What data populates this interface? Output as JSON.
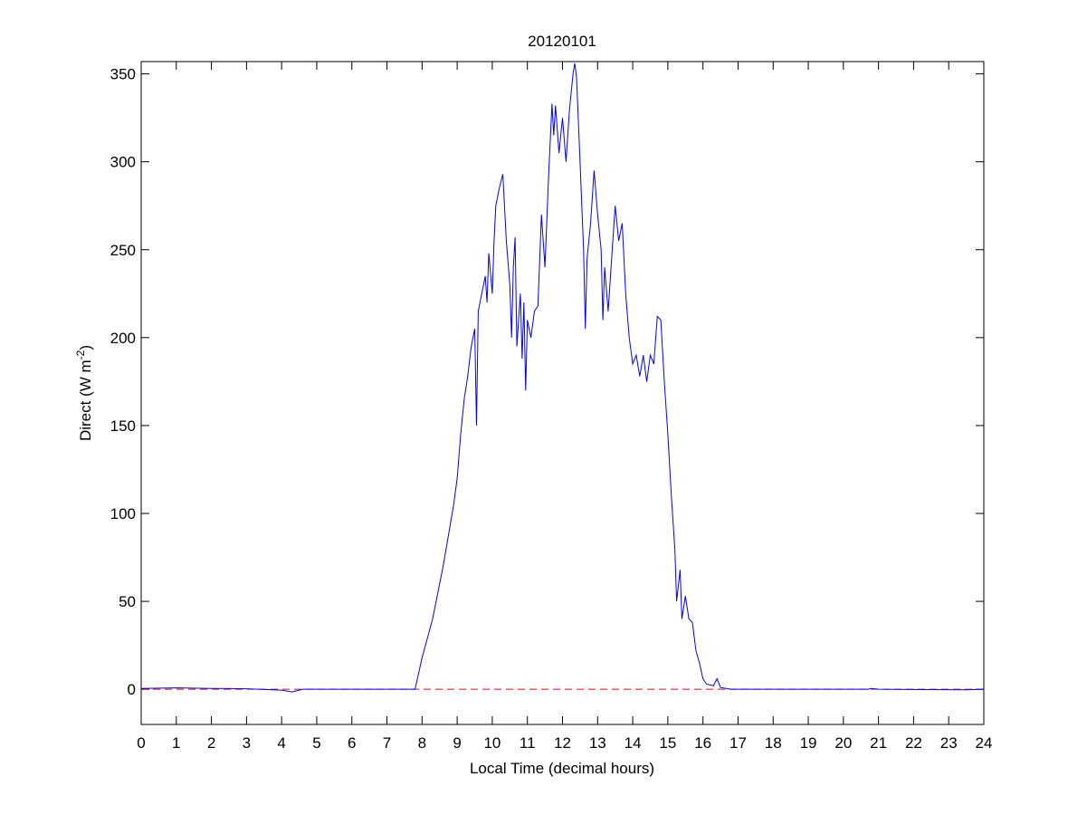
{
  "chart_data": {
    "type": "line",
    "title": "20120101",
    "xlabel": "Local Time (decimal hours)",
    "ylabel": [
      "Direct (W m",
      "-2",
      ")"
    ],
    "x": [
      0,
      1,
      2,
      3,
      4,
      4.3,
      4.6,
      7.8,
      8.0,
      8.3,
      8.6,
      8.9,
      9.0,
      9.1,
      9.2,
      9.3,
      9.4,
      9.5,
      9.55,
      9.6,
      9.7,
      9.8,
      9.85,
      9.9,
      10.0,
      10.05,
      10.1,
      10.2,
      10.3,
      10.4,
      10.5,
      10.55,
      10.6,
      10.65,
      10.7,
      10.8,
      10.85,
      10.9,
      10.95,
      11.0,
      11.1,
      11.2,
      11.3,
      11.4,
      11.5,
      11.6,
      11.7,
      11.75,
      11.8,
      11.9,
      12.0,
      12.1,
      12.2,
      12.3,
      12.35,
      12.4,
      12.5,
      12.6,
      12.65,
      12.7,
      12.8,
      12.9,
      13.0,
      13.1,
      13.15,
      13.2,
      13.3,
      13.4,
      13.5,
      13.6,
      13.7,
      13.8,
      13.9,
      14.0,
      14.1,
      14.2,
      14.3,
      14.4,
      14.5,
      14.6,
      14.7,
      14.8,
      14.9,
      15.0,
      15.1,
      15.2,
      15.25,
      15.35,
      15.4,
      15.5,
      15.6,
      15.7,
      15.8,
      15.9,
      16.0,
      16.1,
      16.3,
      16.4,
      16.5,
      16.8,
      20.7,
      20.8,
      21,
      23.5,
      24
    ],
    "series": [
      {
        "color": "#0000ff",
        "values": [
          0.5,
          0.8,
          0.5,
          0.3,
          -0.5,
          -1.5,
          0,
          0,
          18,
          40,
          70,
          105,
          120,
          145,
          165,
          178,
          195,
          205,
          150,
          215,
          225,
          235,
          220,
          248,
          225,
          255,
          275,
          285,
          293,
          255,
          230,
          200,
          240,
          257,
          195,
          225,
          188,
          220,
          170,
          210,
          200,
          215,
          218,
          270,
          240,
          290,
          333,
          315,
          332,
          305,
          325,
          300,
          330,
          350,
          356,
          348,
          300,
          250,
          205,
          245,
          265,
          295,
          270,
          250,
          210,
          240,
          215,
          245,
          275,
          255,
          265,
          225,
          200,
          185,
          190,
          178,
          190,
          175,
          190,
          185,
          212,
          210,
          175,
          145,
          110,
          80,
          50,
          68,
          40,
          53,
          40,
          38,
          22,
          15,
          6,
          3,
          2,
          6,
          1,
          0,
          0,
          0.5,
          0,
          -0.3,
          0
        ]
      }
    ],
    "hline": {
      "value": 0,
      "color": "#ff0000",
      "style": "dashed"
    },
    "xlim": [
      0,
      24
    ],
    "xticks": [
      0,
      1,
      2,
      3,
      4,
      5,
      6,
      7,
      8,
      9,
      10,
      11,
      12,
      13,
      14,
      15,
      16,
      17,
      18,
      19,
      20,
      21,
      22,
      23,
      24
    ],
    "ylim": [
      -20,
      357
    ],
    "yticks": [
      0,
      50,
      100,
      150,
      200,
      250,
      300,
      350
    ]
  }
}
